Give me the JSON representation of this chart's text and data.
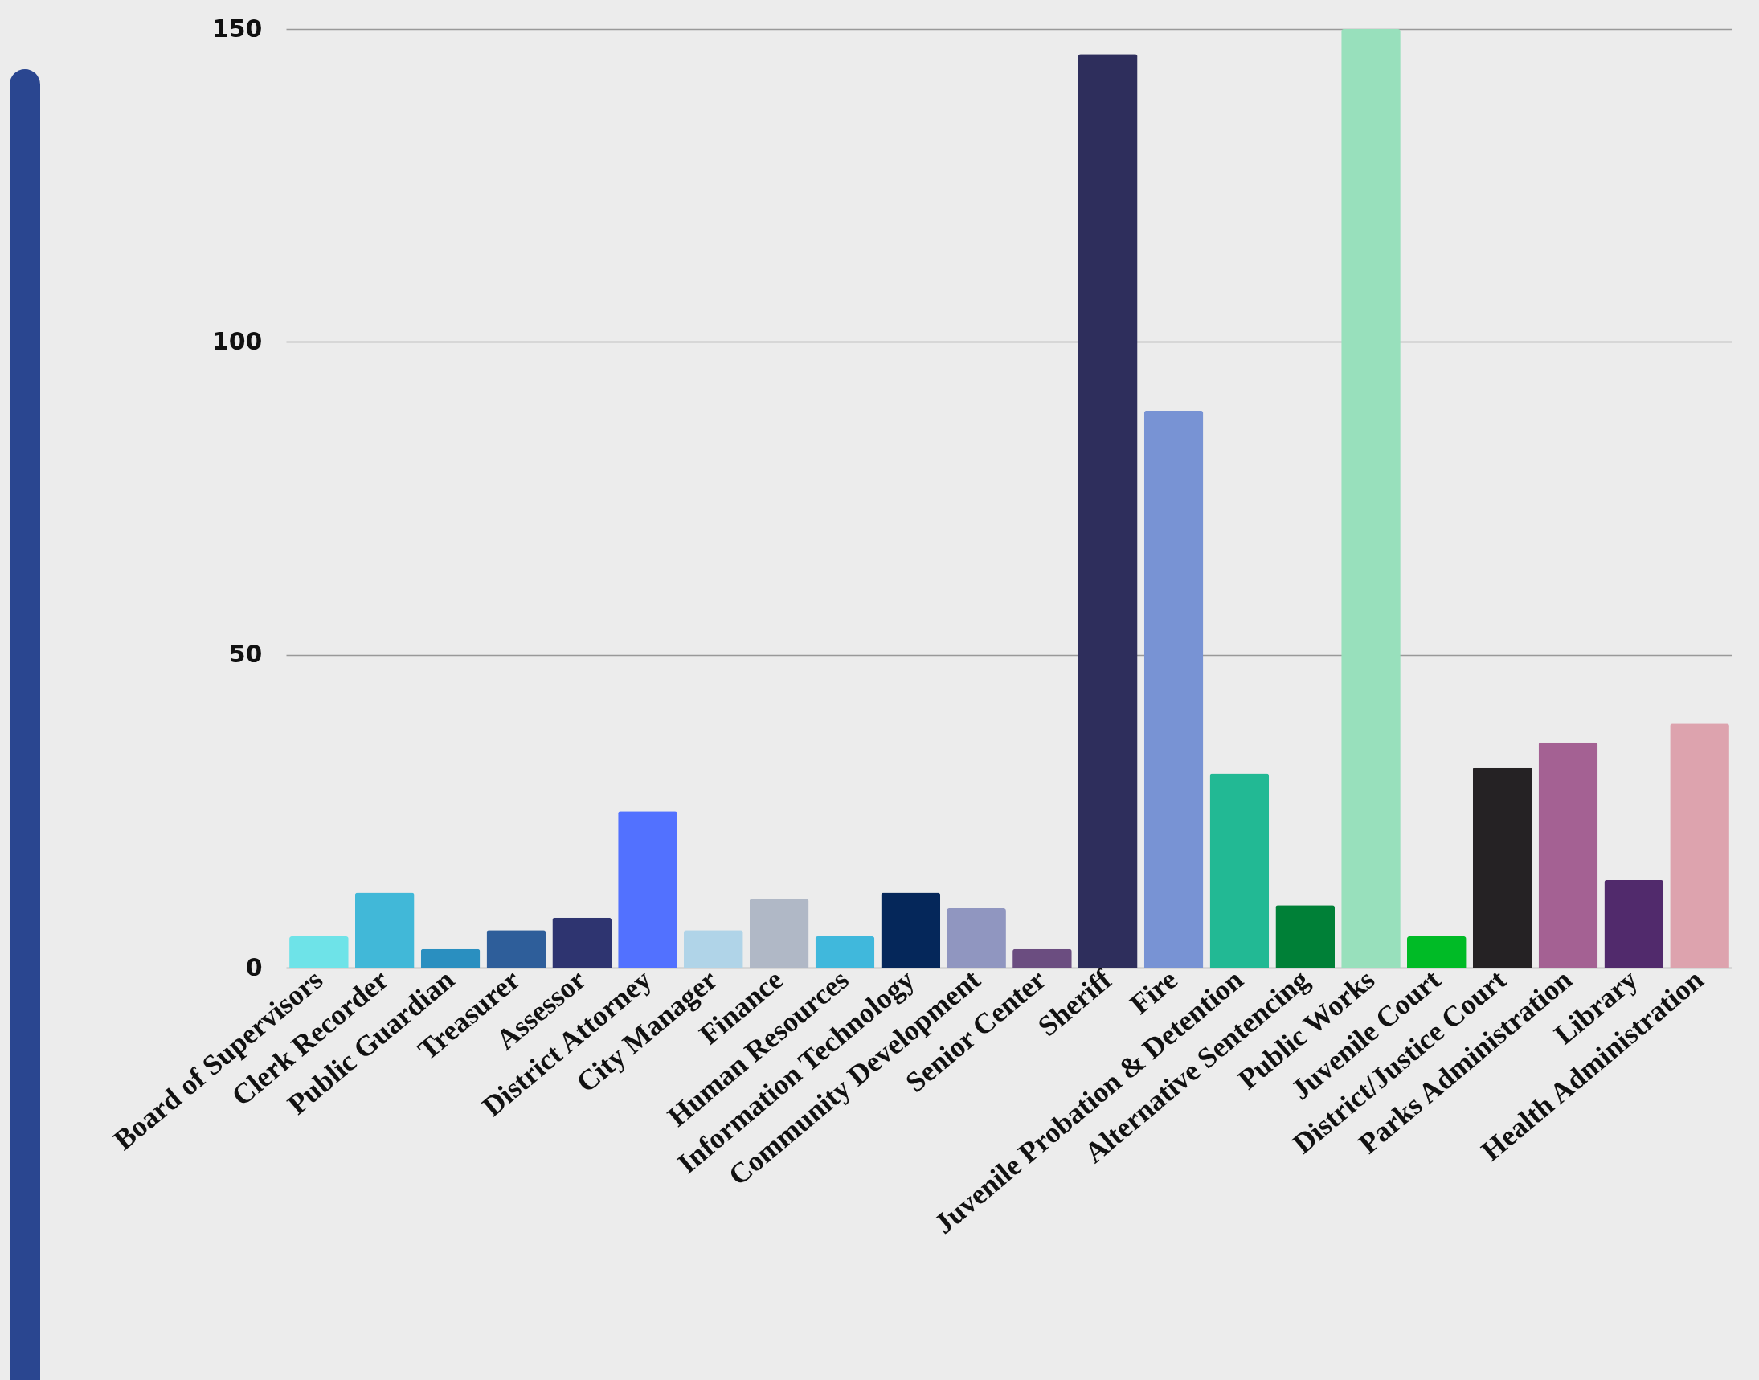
{
  "chart_data": {
    "type": "bar",
    "categories": [
      "Board of Supervisors",
      "Clerk Recorder",
      "Public Guardian",
      "Treasurer",
      "Assessor",
      "District Attorney",
      "City Manager",
      "Finance",
      "Human Resources",
      "Information Technology",
      "Community Development",
      "Senior Center",
      "Sheriff",
      "Fire",
      "Juvenile Probation & Detention",
      "Alternative Sentencing",
      "Public Works",
      "Juvenile Court",
      "District/Justice Court",
      "Parks Administration",
      "Library",
      "Health Administration"
    ],
    "values": [
      5,
      12,
      3,
      6,
      8,
      25,
      6,
      11,
      5,
      12,
      9.5,
      3,
      146,
      89,
      31,
      10,
      150,
      5,
      32,
      36,
      14,
      39
    ],
    "colors": [
      "#6ee3e8",
      "#41b8d8",
      "#2a8fc0",
      "#2e5e9a",
      "#2e3470",
      "#5271ff",
      "#b0d4e8",
      "#b0b8c6",
      "#40b8dc",
      "#05275a",
      "#9096c0",
      "#6b4d80",
      "#2e2e5c",
      "#7893d4",
      "#22b994",
      "#008037",
      "#98e0bc",
      "#00bb26",
      "#252224",
      "#a46193",
      "#512a6c",
      "#dda3ae"
    ],
    "ylim": [
      0,
      150
    ],
    "yticks": [
      0,
      50,
      100,
      150
    ],
    "grid": "y",
    "legend": false
  }
}
